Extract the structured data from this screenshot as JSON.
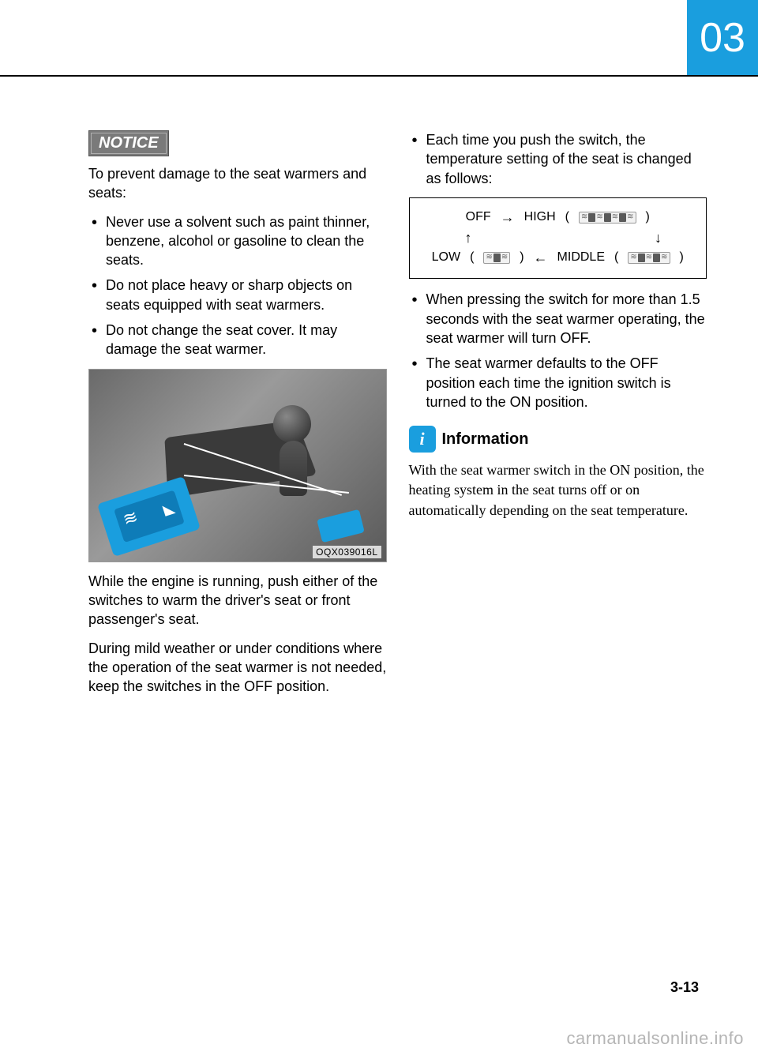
{
  "chapter": "03",
  "page_number": "3-13",
  "watermark": "carmanualsonline.info",
  "notice": {
    "badge": "NOTICE",
    "intro": "To prevent damage to the seat warmers and seats:",
    "items": [
      "Never use a solvent such as paint thinner, benzene, alcohol or gasoline to clean the seats.",
      "Do not place heavy or sharp objects on seats equipped with seat warmers.",
      "Do not change the seat cover. It may damage the seat warmer."
    ]
  },
  "photo": {
    "code": "OQX039016L"
  },
  "left_paras": {
    "p1": "While the engine is running, push either of the switches to warm the driver's seat or front passenger's seat.",
    "p2": "During mild weather or under conditions where the operation of the seat warmer is not needed, keep the switches in the OFF position."
  },
  "right": {
    "bullet1": "Each time you push the switch, the temperature setting of the seat is changed as follows:",
    "cycle": {
      "off": "OFF",
      "high": "HIGH",
      "middle": "MIDDLE",
      "low": "LOW"
    },
    "bullet2": "When pressing the switch for more than 1.5 seconds with the seat warmer operating, the seat warmer will turn OFF.",
    "bullet3": "The seat warmer defaults to the OFF position each time the ignition switch is turned to the ON position."
  },
  "info": {
    "icon": "i",
    "title": "Information",
    "text": "With the seat warmer switch in the ON position, the heating system in the seat turns off or on automatically depending on the seat temperature."
  },
  "colors": {
    "accent": "#1a9ede",
    "notice_bg": "#7a7a7a",
    "text": "#000000",
    "watermark": "#b5b5b5"
  }
}
